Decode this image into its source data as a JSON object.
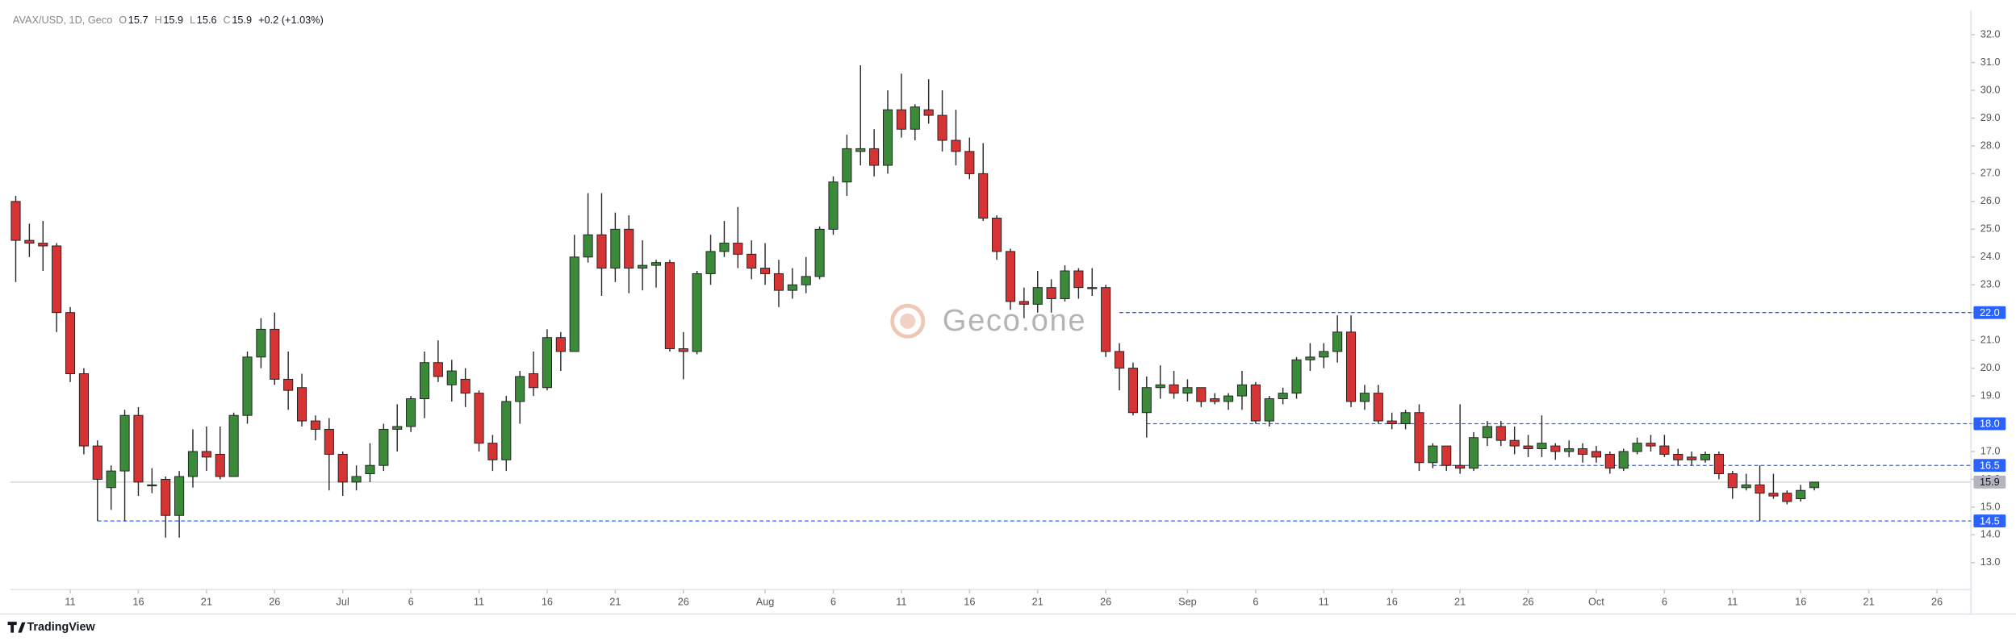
{
  "chart_data": {
    "type": "candlestick",
    "symbol": "AVAX/USD, 1D, Geco",
    "ohlc_header": [
      {
        "label": "O",
        "value": "15.7"
      },
      {
        "label": "H",
        "value": "15.9"
      },
      {
        "label": "L",
        "value": "15.6"
      },
      {
        "label": "C",
        "value": "15.9"
      }
    ],
    "change": "+0.2 (+1.03%)",
    "watermark": "Geco.one",
    "brand": "TradingView",
    "up_color": "#3a8a3a",
    "down_color": "#d63434",
    "line_color": "#2962ff",
    "open": [
      26.0,
      24.6,
      24.5,
      24.4,
      22.0,
      19.8,
      17.2,
      15.7,
      16.3,
      18.3,
      15.8,
      16.0,
      14.7,
      16.1,
      17.0,
      16.9,
      16.1,
      18.3,
      20.4,
      21.4,
      19.6,
      19.3,
      18.1,
      17.8,
      16.9,
      15.9,
      16.2,
      16.5,
      17.8,
      17.9,
      18.9,
      20.2,
      19.4,
      19.6,
      19.1,
      17.3,
      16.7,
      18.8,
      19.8,
      19.3,
      21.1,
      20.6,
      24.0,
      24.8,
      23.6,
      25.0,
      23.6,
      23.7,
      23.8,
      20.7,
      20.6,
      23.4,
      24.2,
      24.5,
      24.1,
      23.6,
      23.4,
      22.8,
      23.0,
      23.3,
      25.0,
      26.7,
      27.8,
      27.9,
      27.3,
      29.3,
      28.6,
      29.3,
      29.1,
      28.2,
      27.8,
      27.0,
      25.4,
      24.2,
      22.4,
      22.3,
      22.9,
      22.5,
      23.5,
      22.9,
      22.9,
      20.6,
      20.0,
      18.4,
      19.3,
      19.4,
      19.1,
      19.3,
      18.9,
      18.8,
      19.0,
      19.4,
      18.1,
      18.9,
      19.1,
      20.3,
      20.4,
      20.6,
      21.3,
      18.8,
      19.1,
      18.1,
      18.0,
      18.4,
      16.6,
      17.2,
      16.5,
      16.4,
      17.5,
      17.9,
      17.4,
      17.2,
      17.1,
      17.2,
      17.0,
      17.1,
      17.0,
      16.9,
      16.4,
      17.0,
      17.3,
      17.2,
      16.9,
      16.8,
      16.7,
      16.9,
      16.2,
      15.7,
      15.8,
      15.5,
      15.5,
      15.3,
      15.7
    ],
    "high": [
      26.2,
      25.2,
      25.3,
      24.5,
      22.2,
      20.0,
      17.4,
      16.5,
      18.5,
      18.6,
      16.4,
      16.1,
      16.3,
      17.8,
      17.9,
      17.9,
      18.4,
      20.6,
      21.8,
      22.0,
      20.6,
      19.8,
      18.3,
      18.2,
      17.0,
      16.5,
      17.3,
      18.0,
      18.7,
      19.0,
      20.6,
      21.0,
      20.3,
      20.0,
      19.2,
      17.6,
      19.0,
      19.9,
      20.6,
      21.4,
      21.3,
      24.8,
      26.3,
      26.3,
      25.6,
      25.5,
      24.6,
      23.9,
      23.9,
      21.3,
      23.5,
      24.8,
      25.3,
      25.8,
      24.6,
      24.5,
      23.9,
      23.6,
      24.0,
      25.1,
      26.9,
      28.4,
      30.9,
      28.6,
      30.0,
      30.6,
      29.5,
      30.4,
      30.0,
      29.3,
      28.3,
      28.1,
      25.5,
      24.3,
      22.9,
      23.5,
      23.2,
      23.7,
      23.6,
      23.6,
      23.0,
      20.9,
      20.2,
      19.7,
      20.1,
      19.9,
      19.6,
      19.3,
      19.1,
      19.1,
      19.9,
      19.5,
      19.0,
      19.3,
      20.4,
      20.9,
      20.9,
      21.9,
      21.9,
      19.4,
      19.4,
      18.4,
      18.5,
      18.7,
      17.3,
      17.2,
      18.7,
      17.7,
      18.1,
      18.1,
      17.9,
      17.6,
      18.3,
      17.3,
      17.4,
      17.3,
      17.2,
      17.0,
      17.1,
      17.5,
      17.6,
      17.6,
      17.1,
      17.0,
      17.0,
      17.0,
      16.3,
      16.2,
      16.5,
      16.2,
      15.6,
      15.8,
      15.9
    ],
    "low": [
      23.1,
      24.0,
      23.5,
      21.3,
      19.5,
      16.9,
      14.5,
      14.9,
      14.5,
      15.4,
      15.5,
      13.9,
      13.9,
      15.7,
      16.3,
      16.0,
      16.1,
      18.0,
      20.0,
      19.4,
      18.5,
      17.9,
      17.4,
      15.6,
      15.4,
      15.6,
      15.9,
      16.3,
      17.0,
      17.7,
      18.2,
      19.5,
      18.8,
      18.6,
      17.0,
      16.3,
      16.3,
      18.0,
      19.0,
      19.2,
      19.9,
      20.6,
      23.8,
      22.6,
      23.1,
      22.7,
      22.8,
      22.9,
      20.6,
      19.6,
      20.5,
      23.0,
      24.0,
      23.6,
      23.2,
      23.0,
      22.2,
      22.5,
      22.7,
      23.2,
      24.8,
      26.2,
      27.3,
      26.9,
      27.0,
      28.3,
      28.2,
      28.8,
      27.8,
      27.3,
      26.8,
      25.3,
      23.9,
      22.1,
      21.8,
      22.0,
      22.0,
      22.4,
      22.5,
      22.6,
      20.4,
      19.2,
      18.3,
      17.5,
      18.9,
      18.9,
      18.8,
      18.6,
      18.7,
      18.5,
      18.5,
      18.0,
      17.9,
      18.7,
      18.9,
      19.9,
      20.0,
      20.2,
      18.6,
      18.5,
      18.0,
      17.8,
      17.8,
      16.3,
      16.4,
      16.3,
      16.2,
      16.3,
      17.2,
      17.2,
      16.9,
      16.8,
      16.8,
      16.7,
      16.8,
      16.6,
      16.6,
      16.2,
      16.3,
      16.9,
      17.0,
      16.8,
      16.5,
      16.5,
      16.6,
      16.0,
      15.3,
      15.6,
      14.5,
      15.3,
      15.1,
      15.2,
      15.6
    ],
    "close": [
      24.6,
      24.5,
      24.4,
      22.0,
      19.8,
      17.2,
      16.0,
      16.3,
      18.3,
      15.9,
      15.8,
      14.7,
      16.1,
      17.0,
      16.8,
      16.1,
      18.3,
      20.4,
      21.4,
      19.6,
      19.2,
      18.1,
      17.8,
      16.9,
      15.9,
      16.1,
      16.5,
      17.8,
      17.9,
      18.9,
      20.2,
      19.7,
      19.9,
      19.1,
      17.3,
      16.7,
      18.8,
      19.7,
      19.3,
      21.1,
      20.6,
      24.0,
      24.8,
      23.6,
      25.0,
      23.6,
      23.7,
      23.8,
      20.7,
      20.6,
      23.4,
      24.2,
      24.5,
      24.1,
      23.6,
      23.4,
      22.8,
      23.0,
      23.3,
      25.0,
      26.7,
      27.9,
      27.9,
      27.3,
      29.3,
      28.6,
      29.4,
      29.1,
      28.2,
      27.8,
      27.0,
      25.4,
      24.2,
      22.4,
      22.3,
      22.9,
      22.5,
      23.5,
      22.9,
      22.9,
      20.6,
      20.0,
      18.4,
      19.3,
      19.4,
      19.1,
      19.3,
      18.8,
      18.8,
      19.0,
      19.4,
      18.1,
      18.9,
      19.1,
      20.3,
      20.4,
      20.6,
      21.3,
      18.8,
      19.1,
      18.1,
      18.0,
      18.4,
      16.6,
      17.2,
      16.5,
      16.4,
      17.5,
      17.9,
      17.4,
      17.2,
      17.1,
      17.3,
      17.0,
      17.1,
      16.9,
      16.8,
      16.4,
      17.0,
      17.3,
      17.2,
      16.9,
      16.7,
      16.7,
      16.9,
      16.2,
      15.7,
      15.8,
      15.5,
      15.4,
      15.2,
      15.6,
      15.9
    ],
    "xlim": [
      -0.4,
      143.5
    ],
    "xticks": [
      {
        "value": 4,
        "label": "11"
      },
      {
        "value": 9,
        "label": "16"
      },
      {
        "value": 14,
        "label": "21"
      },
      {
        "value": 19,
        "label": "26"
      },
      {
        "value": 24,
        "label": "Jul"
      },
      {
        "value": 29,
        "label": "6"
      },
      {
        "value": 34,
        "label": "11"
      },
      {
        "value": 39,
        "label": "16"
      },
      {
        "value": 44,
        "label": "21"
      },
      {
        "value": 49,
        "label": "26"
      },
      {
        "value": 55,
        "label": "Aug"
      },
      {
        "value": 60,
        "label": "6"
      },
      {
        "value": 65,
        "label": "11"
      },
      {
        "value": 70,
        "label": "16"
      },
      {
        "value": 75,
        "label": "21"
      },
      {
        "value": 80,
        "label": "26"
      },
      {
        "value": 86,
        "label": "Sep"
      },
      {
        "value": 91,
        "label": "6"
      },
      {
        "value": 96,
        "label": "11"
      },
      {
        "value": 101,
        "label": "16"
      },
      {
        "value": 106,
        "label": "21"
      },
      {
        "value": 111,
        "label": "26"
      },
      {
        "value": 116,
        "label": "Oct"
      },
      {
        "value": 121,
        "label": "6"
      },
      {
        "value": 126,
        "label": "11"
      },
      {
        "value": 131,
        "label": "16"
      },
      {
        "value": 136,
        "label": "21"
      },
      {
        "value": 141,
        "label": "26"
      }
    ],
    "ylim": [
      12.03,
      32.88
    ],
    "yticks": [
      {
        "value": 13,
        "label": "13.0"
      },
      {
        "value": 14,
        "label": "14.0"
      },
      {
        "value": 15,
        "label": "15.0"
      },
      {
        "value": 16,
        "label": "16.0"
      },
      {
        "value": 17,
        "label": "17.0"
      },
      {
        "value": 18,
        "label": "18.0"
      },
      {
        "value": 19,
        "label": "19.0"
      },
      {
        "value": 20,
        "label": "20.0"
      },
      {
        "value": 21,
        "label": "21.0"
      },
      {
        "value": 22,
        "label": "22.0"
      },
      {
        "value": 23,
        "label": "23.0"
      },
      {
        "value": 24,
        "label": "24.0"
      },
      {
        "value": 25,
        "label": "25.0"
      },
      {
        "value": 26,
        "label": "26.0"
      },
      {
        "value": 27,
        "label": "27.0"
      },
      {
        "value": 28,
        "label": "28.0"
      },
      {
        "value": 29,
        "label": "29.0"
      },
      {
        "value": 30,
        "label": "30.0"
      },
      {
        "value": 31,
        "label": "31.0"
      },
      {
        "value": 32,
        "label": "32.0"
      }
    ],
    "levels": [
      {
        "value": 22,
        "label": "22.0",
        "from": 81
      },
      {
        "value": 18,
        "label": "18.0",
        "from": 83
      },
      {
        "value": 16.5,
        "label": "16.5",
        "from": 104
      },
      {
        "value": 14.5,
        "label": "14.5",
        "from": 6
      }
    ],
    "last_price": {
      "value": 15.9,
      "label": "15.9"
    }
  }
}
